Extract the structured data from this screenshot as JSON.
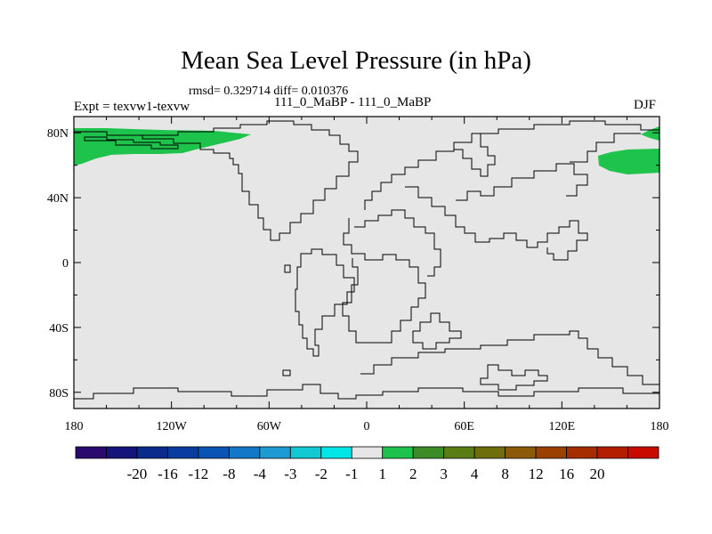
{
  "chart_data": {
    "type": "heatmap",
    "title": "Mean Sea Level Pressure (in hPa)",
    "stats": "rmsd= 0.329714  diff= 0.010376",
    "subtitle": "111_0_MaBP - 111_0_MaBP",
    "left_label": "Expt = texvw1-texvw",
    "right_label": "DJF",
    "x_ticks": [
      "180",
      "120W",
      "60W",
      "0",
      "60E",
      "120E",
      "180"
    ],
    "y_ticks": [
      "80N",
      "40N",
      "0",
      "40S",
      "80S"
    ],
    "x_range": [
      -180,
      180
    ],
    "y_range": [
      -90,
      90
    ],
    "colorbar": {
      "colors": [
        "#2a0a6e",
        "#14147a",
        "#0a2a8c",
        "#0a3ca0",
        "#0a55b4",
        "#1478c8",
        "#1e9bd2",
        "#12c8d2",
        "#00e6e6",
        "#e6e6e6",
        "#1ec34b",
        "#3c8c28",
        "#5a7d14",
        "#6e6e0a",
        "#8c5a0a",
        "#9b4100",
        "#a52d00",
        "#b41e00",
        "#c80a00"
      ],
      "labels": [
        "-20",
        "-16",
        "-12",
        "-8",
        "-4",
        "-3",
        "-2",
        "-1",
        "1",
        "2",
        "3",
        "4",
        "8",
        "12",
        "16",
        "20"
      ]
    },
    "background_color": "#e6e6e6",
    "positive_region_color": "#1ec34b"
  }
}
